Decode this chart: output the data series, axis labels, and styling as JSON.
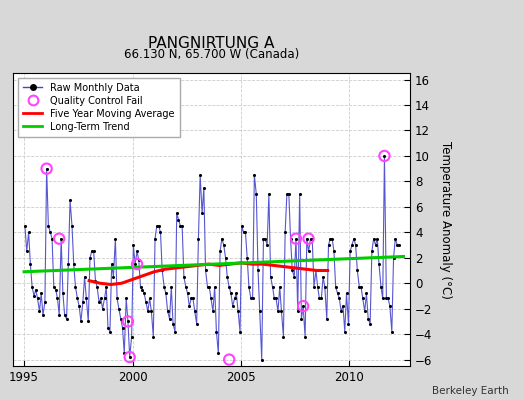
{
  "title": "PANGNIRTUNG A",
  "subtitle": "66.130 N, 65.700 W (Canada)",
  "ylabel": "Temperature Anomaly (°C)",
  "credit": "Berkeley Earth",
  "xlim": [
    1994.5,
    2012.8
  ],
  "ylim": [
    -6.5,
    16.5
  ],
  "yticks": [
    -6,
    -4,
    -2,
    0,
    2,
    4,
    6,
    8,
    10,
    12,
    14,
    16
  ],
  "xticks": [
    1995,
    2000,
    2005,
    2010
  ],
  "bg_color": "#d8d8d8",
  "plot_bg_color": "#ffffff",
  "raw_line_color": "#4444cc",
  "raw_dot_color": "#000000",
  "qc_fail_color": "#ff44ff",
  "moving_avg_color": "#ff0000",
  "trend_color": "#00cc00",
  "raw_monthly_x": [
    1995.04,
    1995.12,
    1995.21,
    1995.29,
    1995.37,
    1995.46,
    1995.54,
    1995.62,
    1995.71,
    1995.79,
    1995.87,
    1995.96,
    1996.04,
    1996.12,
    1996.21,
    1996.29,
    1996.37,
    1996.46,
    1996.54,
    1996.62,
    1996.71,
    1996.79,
    1996.87,
    1996.96,
    1997.04,
    1997.12,
    1997.21,
    1997.29,
    1997.37,
    1997.46,
    1997.54,
    1997.62,
    1997.71,
    1997.79,
    1997.87,
    1997.96,
    1998.04,
    1998.12,
    1998.21,
    1998.29,
    1998.37,
    1998.46,
    1998.54,
    1998.62,
    1998.71,
    1998.79,
    1998.87,
    1998.96,
    1999.04,
    1999.12,
    1999.21,
    1999.29,
    1999.37,
    1999.46,
    1999.54,
    1999.62,
    1999.71,
    1999.79,
    1999.87,
    1999.96,
    2000.04,
    2000.12,
    2000.21,
    2000.29,
    2000.37,
    2000.46,
    2000.54,
    2000.62,
    2000.71,
    2000.79,
    2000.87,
    2000.96,
    2001.04,
    2001.12,
    2001.21,
    2001.29,
    2001.37,
    2001.46,
    2001.54,
    2001.62,
    2001.71,
    2001.79,
    2001.87,
    2001.96,
    2002.04,
    2002.12,
    2002.21,
    2002.29,
    2002.37,
    2002.46,
    2002.54,
    2002.62,
    2002.71,
    2002.79,
    2002.87,
    2002.96,
    2003.04,
    2003.12,
    2003.21,
    2003.29,
    2003.37,
    2003.46,
    2003.54,
    2003.62,
    2003.71,
    2003.79,
    2003.87,
    2003.96,
    2004.04,
    2004.12,
    2004.21,
    2004.29,
    2004.37,
    2004.46,
    2004.54,
    2004.62,
    2004.71,
    2004.79,
    2004.87,
    2004.96,
    2005.04,
    2005.12,
    2005.21,
    2005.29,
    2005.37,
    2005.46,
    2005.54,
    2005.62,
    2005.71,
    2005.79,
    2005.87,
    2005.96,
    2006.04,
    2006.12,
    2006.21,
    2006.29,
    2006.37,
    2006.46,
    2006.54,
    2006.62,
    2006.71,
    2006.79,
    2006.87,
    2006.96,
    2007.04,
    2007.12,
    2007.21,
    2007.29,
    2007.37,
    2007.46,
    2007.54,
    2007.62,
    2007.71,
    2007.79,
    2007.87,
    2007.96,
    2008.04,
    2008.12,
    2008.21,
    2008.29,
    2008.37,
    2008.46,
    2008.54,
    2008.62,
    2008.71,
    2008.79,
    2008.87,
    2008.96,
    2009.04,
    2009.12,
    2009.21,
    2009.29,
    2009.37,
    2009.46,
    2009.54,
    2009.62,
    2009.71,
    2009.79,
    2009.87,
    2009.96,
    2010.04,
    2010.12,
    2010.21,
    2010.29,
    2010.37,
    2010.46,
    2010.54,
    2010.62,
    2010.71,
    2010.79,
    2010.87,
    2010.96,
    2011.04,
    2011.12,
    2011.21,
    2011.29,
    2011.37,
    2011.46,
    2011.54,
    2011.62,
    2011.71,
    2011.79,
    2011.87,
    2011.96,
    2012.04,
    2012.12,
    2012.21,
    2012.29
  ],
  "raw_monthly_y": [
    4.5,
    2.5,
    4.0,
    1.5,
    -0.3,
    -1.0,
    -0.5,
    -1.2,
    -2.2,
    -0.8,
    -2.5,
    -1.5,
    9.0,
    4.5,
    4.0,
    3.5,
    -0.3,
    -0.5,
    -1.2,
    -2.5,
    3.5,
    -0.8,
    -2.5,
    -2.8,
    1.5,
    6.5,
    4.5,
    1.5,
    -0.3,
    -1.2,
    -1.8,
    -3.0,
    -1.5,
    0.5,
    -1.2,
    -3.0,
    2.0,
    2.5,
    2.5,
    0.2,
    -0.3,
    -1.5,
    -1.2,
    -2.0,
    -1.2,
    -0.3,
    -3.5,
    -3.8,
    1.5,
    0.5,
    3.5,
    -1.2,
    -2.0,
    -2.8,
    -3.5,
    -5.5,
    -1.2,
    -3.0,
    -5.8,
    -4.2,
    3.0,
    1.5,
    2.5,
    1.8,
    -0.3,
    -0.5,
    -0.8,
    -1.5,
    -2.2,
    -1.2,
    -2.2,
    -4.2,
    3.5,
    4.5,
    4.5,
    4.0,
    1.0,
    -0.3,
    -0.8,
    -2.2,
    -2.8,
    -0.3,
    -3.2,
    -3.8,
    5.5,
    5.0,
    4.5,
    4.5,
    0.5,
    -0.3,
    -0.8,
    -1.8,
    -1.2,
    -1.2,
    -2.2,
    -3.2,
    3.5,
    8.5,
    5.5,
    7.5,
    1.0,
    -0.3,
    -0.3,
    -1.2,
    -2.2,
    -0.3,
    -3.8,
    -5.5,
    2.5,
    3.5,
    3.0,
    2.0,
    0.5,
    -0.3,
    -0.8,
    -1.8,
    -1.2,
    -0.8,
    -2.2,
    -3.8,
    4.5,
    4.0,
    4.0,
    2.0,
    -0.3,
    -1.2,
    -1.2,
    8.5,
    7.0,
    1.0,
    -2.2,
    -6.0,
    3.5,
    3.5,
    3.0,
    7.0,
    0.5,
    -0.3,
    -1.2,
    -1.2,
    -2.2,
    -0.3,
    -2.2,
    -4.2,
    4.0,
    7.0,
    7.0,
    3.5,
    1.0,
    0.5,
    3.5,
    -2.2,
    7.0,
    -2.8,
    -1.8,
    -4.2,
    3.5,
    2.5,
    3.5,
    3.5,
    -0.3,
    1.0,
    -0.3,
    -1.2,
    -1.2,
    0.5,
    -0.3,
    -2.8,
    3.0,
    3.5,
    3.5,
    2.5,
    -0.3,
    -0.8,
    -1.2,
    -2.2,
    -1.8,
    -3.8,
    -0.8,
    -3.2,
    2.5,
    3.0,
    3.5,
    3.0,
    1.0,
    -0.3,
    -0.3,
    -1.2,
    -2.2,
    -0.8,
    -2.8,
    -3.2,
    2.5,
    3.5,
    3.0,
    3.5,
    1.5,
    -0.3,
    -1.2,
    10.0,
    -1.2,
    -1.2,
    -1.8,
    -3.8,
    2.0,
    3.5,
    3.0,
    3.0
  ],
  "qc_fail_x": [
    1996.04,
    1996.62,
    1999.79,
    1999.87,
    2000.21,
    2004.46,
    2007.54,
    2007.87,
    2008.12,
    2011.62
  ],
  "qc_fail_y": [
    9.0,
    3.5,
    -3.0,
    -5.8,
    1.5,
    -6.0,
    3.5,
    -1.8,
    3.5,
    10.0
  ],
  "moving_avg_x": [
    1998.0,
    1998.5,
    1999.0,
    1999.5,
    2000.0,
    2000.5,
    2001.0,
    2001.5,
    2002.0,
    2002.5,
    2003.0,
    2003.5,
    2004.0,
    2004.5,
    2005.0,
    2005.5,
    2006.0,
    2006.5,
    2007.0,
    2007.5,
    2008.0,
    2008.5,
    2009.0
  ],
  "moving_avg_y": [
    0.2,
    0.0,
    -0.1,
    0.0,
    0.3,
    0.6,
    0.9,
    1.1,
    1.2,
    1.3,
    1.4,
    1.5,
    1.4,
    1.5,
    1.6,
    1.5,
    1.5,
    1.4,
    1.3,
    1.2,
    1.1,
    1.0,
    1.0
  ],
  "trend_x": [
    1995.0,
    2012.5
  ],
  "trend_y": [
    0.9,
    2.1
  ]
}
